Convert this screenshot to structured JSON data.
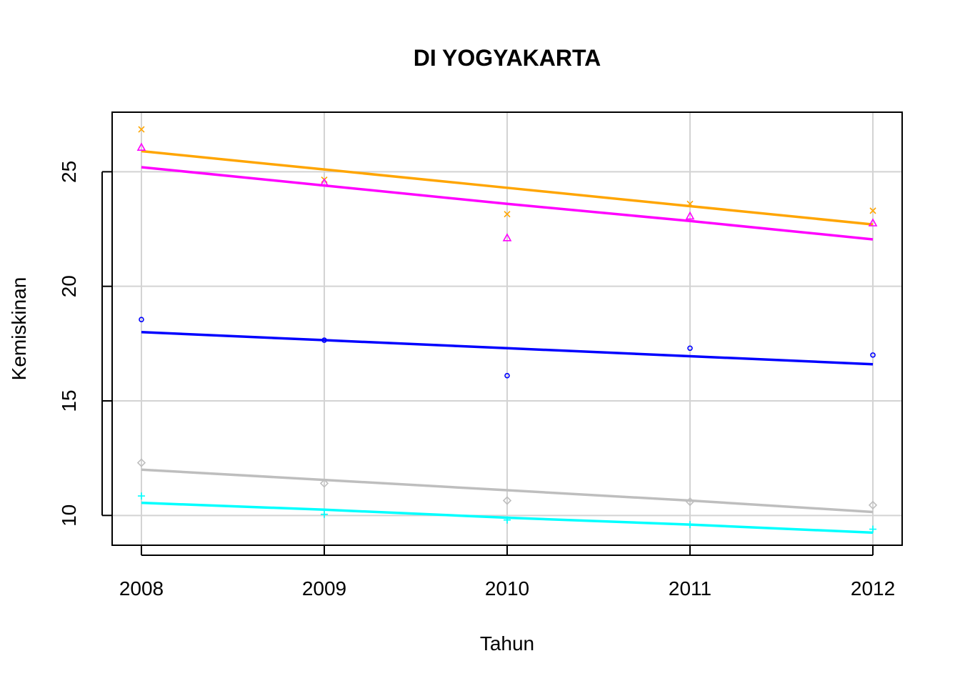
{
  "chart_data": {
    "type": "scatter",
    "title": "DI YOGYAKARTA",
    "xlabel": "Tahun",
    "ylabel": "Kemiskinan",
    "x": [
      2008,
      2009,
      2010,
      2011,
      2012
    ],
    "x_ticks": [
      "2008",
      "2009",
      "2010",
      "2011",
      "2012"
    ],
    "y_ticks": [
      "10",
      "15",
      "20",
      "25"
    ],
    "xlim": [
      2007.84,
      2012.16
    ],
    "ylim": [
      8.7,
      27.6
    ],
    "grid": true,
    "legend": "none",
    "series": [
      {
        "marker": "x",
        "color": "#FFA500",
        "values": [
          26.85,
          24.65,
          23.15,
          23.6,
          23.3
        ],
        "trend": [
          25.9,
          25.1,
          24.3,
          23.5,
          22.7
        ]
      },
      {
        "marker": "triangle",
        "color": "#FF00FF",
        "values": [
          26.05,
          24.5,
          22.1,
          23.05,
          22.75
        ],
        "trend": [
          25.2,
          24.4,
          23.6,
          22.85,
          22.05
        ]
      },
      {
        "marker": "circle",
        "color": "#0000FF",
        "values": [
          18.55,
          17.65,
          16.1,
          17.3,
          17.0
        ],
        "trend": [
          18.0,
          17.65,
          17.3,
          16.95,
          16.6
        ]
      },
      {
        "marker": "diamond",
        "color": "#BEBEBE",
        "values": [
          12.3,
          11.4,
          10.65,
          10.6,
          10.45
        ],
        "trend": [
          12.0,
          11.55,
          11.1,
          10.65,
          10.15
        ]
      },
      {
        "marker": "plus",
        "color": "#00FFFF",
        "values": [
          10.85,
          10.05,
          9.8,
          9.6,
          9.4
        ],
        "trend": [
          10.55,
          10.25,
          9.9,
          9.6,
          9.25
        ]
      }
    ]
  }
}
